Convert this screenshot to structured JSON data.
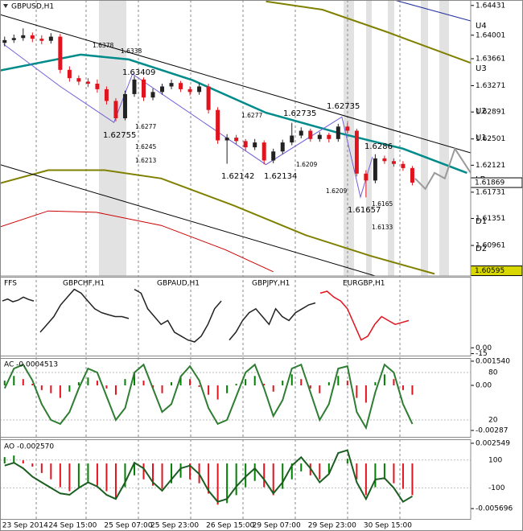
{
  "chart_data": [
    {
      "type": "candlestick",
      "title": "GBPUSD,H1",
      "categories": [
        "23 Sep 2014",
        null,
        null,
        null,
        null,
        "24 Sep 15:00",
        null,
        null,
        null,
        null,
        null,
        "25 Sep 07:00",
        null,
        null,
        null,
        null,
        "25 Sep 23:00",
        null,
        null,
        null,
        null,
        null,
        "26 Sep 15:00",
        null,
        null,
        null,
        null,
        "29 Sep 07:00",
        null,
        null,
        null,
        null,
        null,
        "29 Sep 23:00",
        null,
        null,
        null,
        null,
        null,
        "30 Sep 15:00",
        null,
        null,
        null,
        null,
        null
      ],
      "open": [
        1.6389,
        1.6393,
        1.6396,
        1.64,
        1.6395,
        1.6392,
        1.6398,
        1.635,
        1.6338,
        1.6333,
        1.633,
        1.6322,
        1.6305,
        1.628,
        1.6315,
        1.6336,
        1.631,
        1.6318,
        1.6326,
        1.6331,
        1.6322,
        1.6318,
        1.6326,
        1.6292,
        1.6248,
        1.6252,
        1.6247,
        1.6238,
        1.6245,
        1.6219,
        1.6232,
        1.6245,
        1.6255,
        1.6262,
        1.625,
        1.6256,
        1.625,
        1.6268,
        1.6262,
        1.62,
        1.619,
        1.6222,
        1.6218,
        1.6214,
        1.6208
      ],
      "high": [
        1.6398,
        1.6401,
        1.641,
        1.6404,
        1.64,
        1.6403,
        1.6402,
        1.6355,
        1.6342,
        1.6338,
        1.6336,
        1.6326,
        1.6309,
        1.632,
        1.63409,
        1.6339,
        1.6323,
        1.633,
        1.6336,
        1.6334,
        1.6326,
        1.6331,
        1.633,
        1.6296,
        1.6257,
        1.6256,
        1.625,
        1.625,
        1.6248,
        1.6236,
        1.6249,
        1.62735,
        1.6267,
        1.6265,
        1.626,
        1.6259,
        1.6272,
        1.62735,
        1.6265,
        1.6205,
        1.6228,
        1.6226,
        1.6222,
        1.6218,
        1.6211
      ],
      "low": [
        1.6384,
        1.6389,
        1.6392,
        1.639,
        1.6387,
        1.6388,
        1.6345,
        1.6333,
        1.6328,
        1.6325,
        1.6317,
        1.63,
        1.62755,
        1.6277,
        1.6311,
        1.6305,
        1.6306,
        1.6314,
        1.6322,
        1.6318,
        1.6313,
        1.6314,
        1.6287,
        1.6243,
        1.62142,
        1.6242,
        1.6233,
        1.6234,
        1.62134,
        1.6215,
        1.6228,
        1.6241,
        1.6251,
        1.6246,
        1.6246,
        1.6245,
        1.6246,
        1.6258,
        1.6196,
        1.61657,
        1.6186,
        1.6214,
        1.621,
        1.6204,
        1.6183
      ],
      "close": [
        1.6393,
        1.6396,
        1.64,
        1.6395,
        1.6392,
        1.6398,
        1.635,
        1.6338,
        1.6333,
        1.633,
        1.6322,
        1.6305,
        1.628,
        1.6315,
        1.6336,
        1.631,
        1.6318,
        1.6326,
        1.6331,
        1.6322,
        1.6318,
        1.6326,
        1.6292,
        1.6248,
        1.6252,
        1.6247,
        1.6238,
        1.6245,
        1.6219,
        1.6232,
        1.6245,
        1.6255,
        1.6262,
        1.625,
        1.6256,
        1.625,
        1.6268,
        1.6262,
        1.62,
        1.619,
        1.6222,
        1.6218,
        1.6214,
        1.6208,
        1.6187
      ],
      "up_color": "#222222",
      "down_color": "#e0141e",
      "xlim": [
        -0.5,
        50.3
      ],
      "ylim": [
        1.6052,
        1.6451
      ],
      "yticks": [
        1.64431,
        1.64001,
        1.63661,
        1.63271,
        1.62891,
        1.62501,
        1.62121,
        1.61731,
        1.61351,
        1.60961
      ],
      "levels": [
        {
          "label": "U4",
          "value": 1.6414
        },
        {
          "label": "U3",
          "value": 1.63523
        },
        {
          "label": "U2",
          "value": 1.62906
        },
        {
          "label": "U1",
          "value": 1.62521
        },
        {
          "label": "LB",
          "value": 1.61916
        },
        {
          "label": "D1",
          "value": 1.6131
        },
        {
          "label": "D2",
          "value": 1.60914
        }
      ],
      "price_labels": [
        1.61869,
        1.60595
      ],
      "price_label_colors": [
        "#ffffff",
        "#d8d800"
      ],
      "overlays": [
        {
          "color": "#808000",
          "x": [
            28.2,
            34.3,
            41.2,
            50.3
          ],
          "values": [
            1.6449,
            1.6437,
            1.6405,
            1.636
          ]
        },
        {
          "color": "#808000",
          "x": [
            -0.5,
            4.7,
            10.8,
            16.9,
            24.7,
            32.5,
            39.5,
            46.4
          ],
          "values": [
            1.6186,
            1.6205,
            1.6205,
            1.6193,
            1.6154,
            1.6111,
            1.6081,
            1.6055
          ]
        },
        {
          "color": "#cc0000",
          "x": [
            -0.5,
            4.7,
            9.9,
            16.9,
            23.8,
            29.0
          ],
          "values": [
            1.6123,
            1.6146,
            1.6144,
            1.6125,
            1.609,
            1.6058
          ]
        },
        {
          "color": "#000000",
          "x": [
            -0.5,
            50.3
          ],
          "values": [
            1.643,
            1.623
          ]
        },
        {
          "color": "#000000",
          "x": [
            -0.5,
            50.3
          ],
          "values": [
            1.6213,
            1.6011
          ]
        },
        {
          "color": "#008b8b",
          "x": [
            -0.5,
            8.2,
            13.4,
            20.3,
            28.2,
            36,
            43,
            49.9
          ],
          "values": [
            1.6349,
            1.6372,
            1.6365,
            1.6335,
            1.6288,
            1.6259,
            1.6236,
            1.6201
          ]
        },
        {
          "color": "#7060d8",
          "x": [
            -0.1,
            6,
            11.8,
            13.8,
            28.2,
            36.4,
            38.4,
            39.7
          ],
          "values": [
            1.6387,
            1.6326,
            1.6274,
            1.6344,
            1.6213,
            1.6282,
            1.6166,
            1.6224
          ]
        },
        {
          "color": "#9a9a9a",
          "x": [
            44.3,
            45.4,
            46.4,
            47.5,
            48.6,
            50.3
          ],
          "values": [
            1.6193,
            1.6178,
            1.6201,
            1.6193,
            1.6236,
            1.6201
          ]
        }
      ],
      "annotations": [
        "1.63409",
        "1.62755",
        "1.62735",
        "1.62735",
        "1.62142",
        "1.62134",
        "1.61657",
        "1.6286"
      ],
      "small_labels": [
        "1.6378",
        "1.6338",
        "1.6277",
        "1.6277",
        "1.6245",
        "1.6213",
        "1.6209",
        "1.6209",
        "1.6165",
        "1.6133"
      ]
    },
    {
      "type": "multi-line",
      "ylim": [
        -20,
        180
      ],
      "yticks": [
        {
          "value": 0,
          "label": "0.00"
        },
        -15
      ],
      "series": [
        {
          "name": "FFS",
          "color": "#222222",
          "values": [
            120,
            125,
            118,
            122,
            130,
            124,
            120
          ]
        },
        {
          "name": "GBPCHF,H1",
          "color": "#222222",
          "values": [
            40,
            60,
            80,
            110,
            130,
            150,
            140,
            120,
            100,
            90,
            85,
            80,
            80,
            75
          ]
        },
        {
          "name": "GBPAUD,H1",
          "color": "#222222",
          "values": [
            150,
            140,
            100,
            80,
            60,
            70,
            40,
            30,
            20,
            15,
            30,
            60,
            100,
            120
          ]
        },
        {
          "name": "GBPJPY,H1",
          "color": "#222222",
          "values": [
            20,
            40,
            70,
            90,
            100,
            80,
            60,
            100,
            80,
            70,
            90,
            100,
            110,
            115
          ]
        },
        {
          "name": "EURGBP,H1",
          "color": "#e0141e",
          "values": [
            140,
            145,
            130,
            120,
            100,
            60,
            20,
            30,
            60,
            80,
            70,
            60,
            65,
            70
          ]
        }
      ]
    },
    {
      "type": "bar",
      "title": "AC -0.0004513",
      "up_color": "#008000",
      "down_color": "#e0141e",
      "values": [
        0.0003,
        0.0006,
        0.0004,
        0.0001,
        -0.0003,
        -0.0005,
        -0.0008,
        -0.0004,
        0.0002,
        0.0005,
        0.0003,
        -0.0002,
        -0.0006,
        0.0004,
        0.0008,
        0.0003,
        -0.0002,
        -0.0005,
        0.0002,
        0.0006,
        0.0004,
        -0.0001,
        -0.0006,
        -0.0009,
        -0.0005,
        0.0001,
        0.0004,
        0.0006,
        0.0001,
        -0.0004,
        0.0003,
        0.0007,
        0.0004,
        -0.0002,
        -0.0005,
        0.0002,
        0.0006,
        0.0003,
        -0.0008,
        -0.0011,
        0.0002,
        0.0007,
        0.0004,
        -0.0003,
        -0.0006
      ],
      "ylim": [
        -0.00328,
        0.00169
      ],
      "yticks": [
        {
          "value": 0.00154,
          "label": "0.001540"
        },
        {
          "value": 0,
          "label": "0.00"
        },
        -0.00287
      ],
      "y2lim": [
        -1.4,
        97.3
      ],
      "y2ticks": [
        80,
        20
      ],
      "series": [
        {
          "axis": "y2",
          "color": "#2e7d32",
          "values": [
            60,
            85,
            90,
            70,
            40,
            20,
            15,
            30,
            60,
            85,
            80,
            50,
            20,
            35,
            80,
            90,
            60,
            30,
            40,
            75,
            88,
            70,
            35,
            15,
            20,
            50,
            80,
            90,
            60,
            25,
            45,
            85,
            90,
            55,
            20,
            40,
            85,
            88,
            30,
            10,
            55,
            90,
            80,
            40,
            15
          ]
        }
      ]
    },
    {
      "type": "bar",
      "title": "AO -0.002570",
      "up_color": "#008000",
      "down_color": "#e0141e",
      "values": [
        0.0008,
        0.001,
        0.0004,
        -0.0004,
        -0.0012,
        -0.002,
        -0.003,
        -0.0035,
        -0.003,
        -0.0025,
        -0.0028,
        -0.0035,
        -0.0045,
        -0.003,
        -0.0015,
        -0.002,
        -0.0028,
        -0.0032,
        -0.0025,
        -0.0018,
        -0.002,
        -0.0025,
        -0.0038,
        -0.0052,
        -0.005,
        -0.004,
        -0.003,
        -0.0022,
        -0.003,
        -0.004,
        -0.0032,
        -0.002,
        -0.001,
        -0.0015,
        -0.002,
        -0.0012,
        0.0,
        0.0006,
        -0.002,
        -0.004,
        -0.003,
        -0.002,
        -0.0025,
        -0.0032,
        -0.004
      ],
      "ylim": [
        -0.007,
        0.00295
      ],
      "yticks": [
        0.002549,
        -0.005696
      ],
      "y2lim": [
        -323,
        243
      ],
      "y2ticks": [
        100,
        -100
      ],
      "series": [
        {
          "axis": "y2",
          "color": "#1b5e20",
          "values": [
            60,
            80,
            40,
            -20,
            -60,
            -100,
            -140,
            -150,
            -100,
            -60,
            -90,
            -150,
            -180,
            -60,
            80,
            40,
            -60,
            -120,
            -40,
            40,
            60,
            0,
            -120,
            -200,
            -180,
            -90,
            -20,
            40,
            -40,
            -140,
            -60,
            60,
            120,
            40,
            -60,
            0,
            150,
            170,
            -60,
            -180,
            -40,
            -30,
            -100,
            -200,
            -160
          ]
        }
      ]
    }
  ]
}
